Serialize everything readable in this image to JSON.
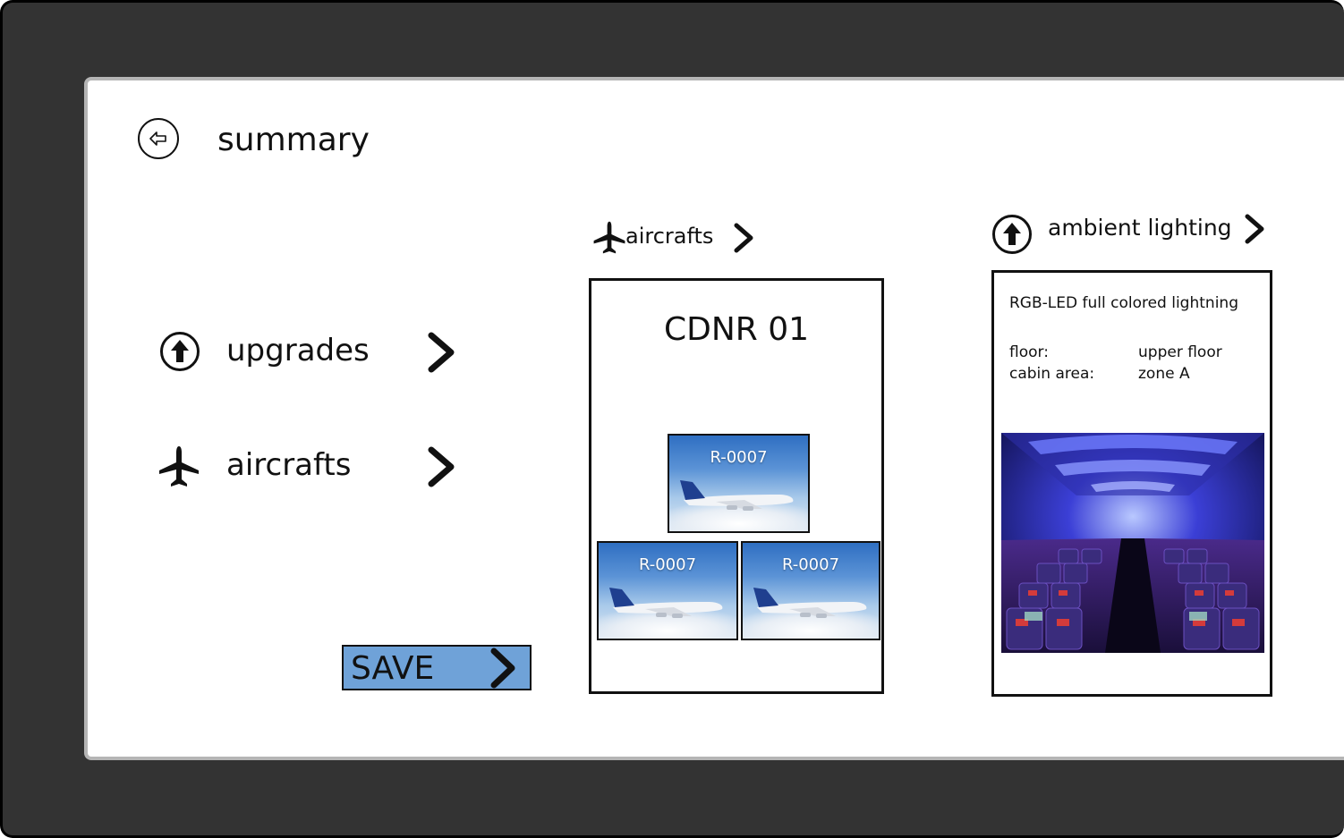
{
  "header": {
    "title": "summary",
    "back_icon": "back-arrow-icon"
  },
  "menu": {
    "items": [
      {
        "label": "upgrades",
        "icon": "upgrade-arrow-icon"
      },
      {
        "label": "aircrafts",
        "icon": "airplane-icon"
      }
    ]
  },
  "save_button": {
    "label": "SAVE"
  },
  "aircrafts_panel": {
    "heading": "aircrafts",
    "name": "CDNR 01",
    "thumbnails": [
      "R-0007",
      "R-0007",
      "R-0007"
    ]
  },
  "lighting_panel": {
    "heading": "ambient lighting",
    "description": "RGB-LED full colored lightning",
    "floor_label": "floor:",
    "floor_value": "upper floor",
    "cabin_label": "cabin area:",
    "cabin_value": "zone A"
  },
  "colors": {
    "device_frame": "#333333",
    "save_button": "#6fa2d8",
    "accent_cabin": "#3b3fd6"
  }
}
